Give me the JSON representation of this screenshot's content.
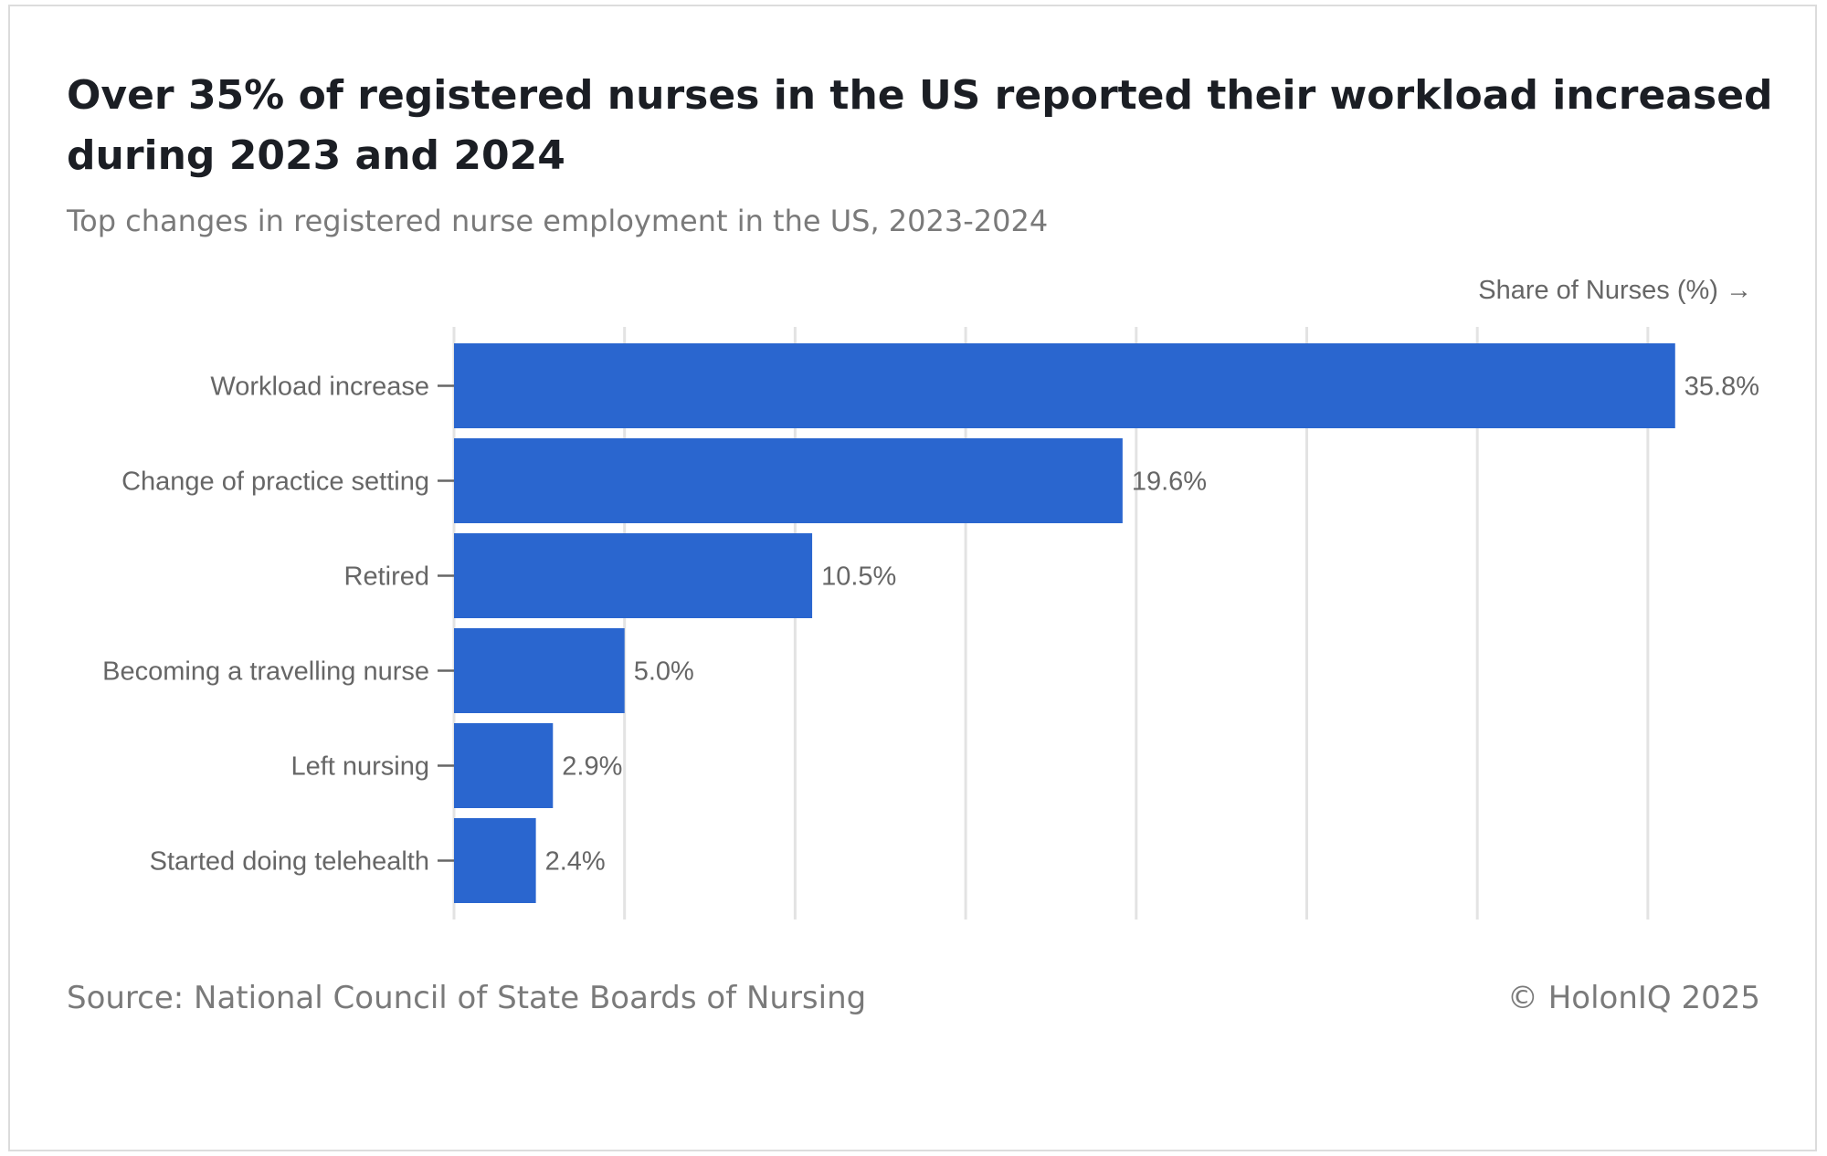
{
  "title": "Over 35% of registered nurses in the US reported their workload increased during 2023 and 2024",
  "subtitle": "Top changes in registered nurse employment in the US, 2023-2024",
  "source": "Source: National Council of State Boards of Nursing",
  "credit": "© HolonIQ 2025",
  "chart_data": {
    "type": "bar",
    "orientation": "horizontal",
    "title": "Over 35% of registered nurses in the US reported their workload increased during 2023 and 2024",
    "subtitle": "Top changes in registered nurse employment in the US, 2023-2024",
    "xlabel": "Share of Nurses (%) →",
    "ylabel": "",
    "categories": [
      "Workload increase",
      "Change of practice setting",
      "Retired",
      "Becoming a travelling nurse",
      "Left nursing",
      "Started doing telehealth"
    ],
    "values": [
      35.8,
      19.6,
      10.5,
      5.0,
      2.9,
      2.4
    ],
    "data_labels": [
      "35.8%",
      "19.6%",
      "10.5%",
      "5.0%",
      "2.9%",
      "2.4%"
    ],
    "xlim": [
      0,
      35
    ],
    "gridline_interval": 5,
    "grid": true,
    "tick_labels_shown": false,
    "legend": "none",
    "bar_color": "#2a66cf",
    "grid_color": "#e3e3e3",
    "text_color": "#666666"
  }
}
